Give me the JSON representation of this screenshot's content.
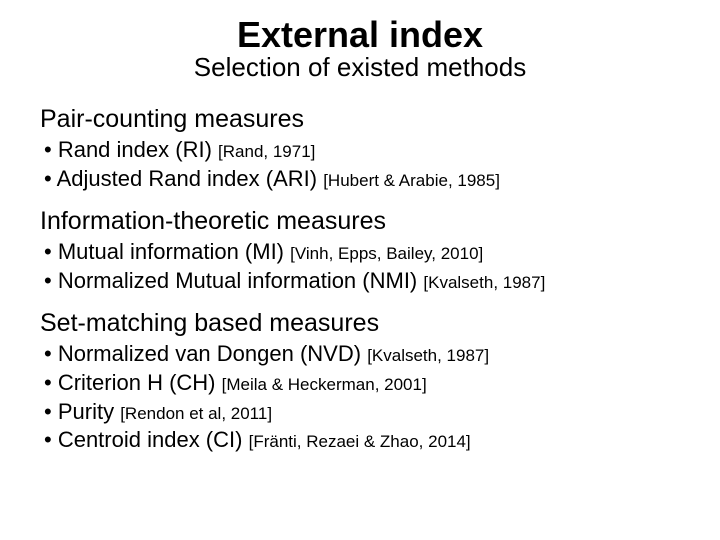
{
  "title": "External index",
  "subtitle": "Selection of existed methods",
  "sections": [
    {
      "heading": "Pair-counting measures",
      "items": [
        {
          "text": "Rand index (RI)",
          "cite": "[Rand, 1971]"
        },
        {
          "text": "Adjusted Rand index (ARI)",
          "cite": "[Hubert & Arabie, 1985]"
        }
      ]
    },
    {
      "heading": "Information-theoretic measures",
      "items": [
        {
          "text": "Mutual information (MI)",
          "cite": "[Vinh, Epps, Bailey, 2010]"
        },
        {
          "text": "Normalized Mutual information (NMI)",
          "cite": "[Kvalseth, 1987]"
        }
      ]
    },
    {
      "heading": "Set-matching based measures",
      "items": [
        {
          "text": "Normalized van Dongen (NVD)",
          "cite": "[Kvalseth, 1987]"
        },
        {
          "text": "Criterion H  (CH)",
          "cite": "[Meila & Heckerman, 2001]"
        },
        {
          "text": "Purity",
          "cite": "[Rendon et al, 2011]"
        },
        {
          "text": "Centroid index (CI)",
          "cite": "[Fränti, Rezaei & Zhao, 2014]"
        }
      ]
    }
  ],
  "style": {
    "background_color": "#ffffff",
    "text_color": "#000000",
    "title_fontsize": 36,
    "subtitle_fontsize": 26,
    "section_fontsize": 25,
    "item_fontsize": 22,
    "cite_fontsize": 17,
    "font_family": "Verdana"
  }
}
